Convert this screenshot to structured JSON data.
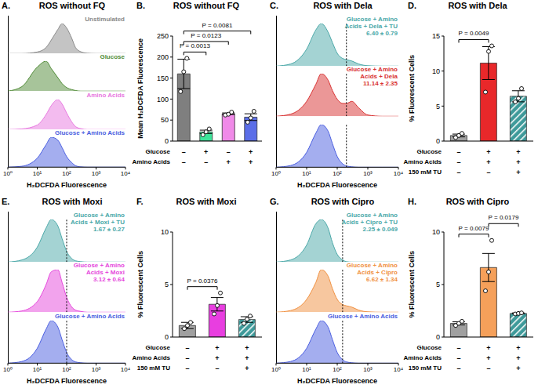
{
  "chart_data": [
    {
      "panel": "A.",
      "title": "ROS without FQ",
      "type": "area",
      "log": "x",
      "tick_labels": "x",
      "xlabel": "H₂DCFDA Fluorescence",
      "x": [
        1,
        3,
        10,
        20,
        30,
        50,
        70,
        100,
        150,
        200,
        300,
        500,
        1000,
        3000,
        10000
      ],
      "xlim": [
        1,
        10000
      ],
      "xticks": [
        {
          "value": 1,
          "label": "10⁰"
        },
        {
          "value": 10,
          "label": "10¹"
        },
        {
          "value": 100,
          "label": "10²"
        },
        {
          "value": 1000,
          "label": "10³"
        },
        {
          "value": 10000,
          "label": "10⁴"
        }
      ],
      "ylim": [
        0,
        100
      ],
      "series": [
        {
          "name": "Unstimulated",
          "color": "#8a8a8a",
          "values": [
            0,
            0,
            5,
            20,
            45,
            80,
            100,
            85,
            50,
            20,
            6,
            1,
            0,
            0,
            0
          ]
        },
        {
          "name": "Glucose",
          "color": "#4f8a35",
          "values": [
            0,
            15,
            80,
            100,
            75,
            45,
            25,
            12,
            5,
            2,
            0,
            0,
            0,
            0,
            0
          ]
        },
        {
          "name": "Amino Acids",
          "color": "#e878e0",
          "values": [
            0,
            2,
            15,
            50,
            80,
            100,
            85,
            55,
            25,
            10,
            3,
            0,
            0,
            0,
            0
          ]
        },
        {
          "name": "Glucose + Amino Acids",
          "color": "#4a5ee0",
          "values": [
            0,
            3,
            30,
            75,
            100,
            90,
            65,
            35,
            15,
            5,
            1,
            0,
            0,
            0,
            0
          ]
        }
      ]
    },
    {
      "panel": "B.",
      "title": "ROS without FQ",
      "type": "bar",
      "ylabel": "Mean H₂DCFDA Fluorescence",
      "categories": [
        null,
        null,
        null,
        null
      ],
      "values": [
        160,
        22,
        65,
        57
      ],
      "errors": [
        35,
        4,
        2,
        8
      ],
      "points": [
        [
          118,
          165,
          197
        ],
        [
          15,
          22,
          29
        ],
        [
          62,
          64,
          69
        ],
        [
          45,
          55,
          71
        ]
      ],
      "colors": [
        "#7f7f7f",
        "#3ee39a",
        "#f08ae8",
        "#5b6ee8"
      ],
      "ylim": [
        0,
        250
      ],
      "yticks": [
        0,
        50,
        100,
        150,
        200,
        250
      ],
      "conditions": [
        {
          "label": "Glucose",
          "signs": [
            "–",
            "+",
            "–",
            "+"
          ]
        },
        {
          "label": "Amino Acids",
          "signs": [
            "–",
            "–",
            "+",
            "+"
          ]
        }
      ],
      "comparisons": [
        {
          "pair": [
            0,
            1
          ],
          "label": "P = 0.0013"
        },
        {
          "pair": [
            0,
            2
          ],
          "label": "P = 0.0123"
        },
        {
          "pair": [
            0,
            3
          ],
          "label": "P = 0.0081"
        }
      ]
    },
    {
      "panel": "C.",
      "title": "ROS with Dela",
      "type": "area",
      "log": "x",
      "tick_labels": "x",
      "xlabel": "H₂DCFDA Fluorescence",
      "x": [
        1,
        3,
        10,
        20,
        30,
        50,
        70,
        100,
        150,
        200,
        300,
        500,
        1000,
        3000,
        10000
      ],
      "xlim": [
        1,
        10000
      ],
      "xticks": [
        {
          "value": 1,
          "label": "10⁰"
        },
        {
          "value": 10,
          "label": "10¹"
        },
        {
          "value": 100,
          "label": "10²"
        },
        {
          "value": 1000,
          "label": "10³"
        },
        {
          "value": 10000,
          "label": "10⁴"
        }
      ],
      "ylim": [
        0,
        100
      ],
      "gate": 200,
      "series": [
        {
          "name": "Glucose + Amino Acids + Dela + TU",
          "annotation": "6.40 ± 0.79",
          "color": "#4aa8a8",
          "values": [
            0,
            5,
            40,
            85,
            100,
            80,
            55,
            30,
            18,
            15,
            12,
            5,
            1,
            0,
            0
          ]
        },
        {
          "name": "Glucose + Amino Acids + Dela",
          "annotation": "11.14 ± 2.35",
          "color": "#d83030",
          "values": [
            0,
            5,
            35,
            75,
            100,
            85,
            60,
            40,
            30,
            30,
            35,
            20,
            3,
            0,
            0
          ]
        },
        {
          "color": "#4a5ee0",
          "values": [
            0,
            4,
            35,
            80,
            100,
            85,
            55,
            25,
            8,
            3,
            1,
            0,
            0,
            0,
            0
          ]
        }
      ]
    },
    {
      "panel": "D.",
      "title": "ROS with Dela",
      "type": "bar",
      "ylabel": "% Fluorescent Cells",
      "categories": [
        null,
        null,
        null
      ],
      "values": [
        0.8,
        11.14,
        6.4
      ],
      "errors": [
        0.2,
        2.35,
        0.79
      ],
      "points": [
        [
          0.5,
          0.8,
          1.1
        ],
        [
          7.0,
          12.8,
          13.6
        ],
        [
          5.6,
          6.1,
          7.5
        ]
      ],
      "colors": [
        "#a0a0a0",
        "#e8282a",
        "#3e9a9a"
      ],
      "ylim": [
        0,
        15
      ],
      "yticks": [
        0,
        5,
        10,
        15
      ],
      "conditions": [
        {
          "label": "Glucose",
          "signs": [
            "–",
            "+",
            "+"
          ]
        },
        {
          "label": "Amino Acids",
          "signs": [
            "–",
            "+",
            "+"
          ]
        },
        {
          "label": "150 mM TU",
          "signs": [
            "–",
            "–",
            "+"
          ]
        }
      ],
      "comparisons": [
        {
          "pair": [
            0,
            1
          ],
          "label": "P = 0.0049"
        }
      ]
    },
    {
      "panel": "E.",
      "title": "ROS with Moxi",
      "type": "area",
      "log": "x",
      "tick_labels": "x",
      "xlabel": "H₂DCFDA Fluorescence",
      "x": [
        1,
        3,
        10,
        20,
        30,
        50,
        70,
        100,
        150,
        200,
        300,
        500,
        1000,
        3000,
        10000
      ],
      "xlim": [
        1,
        10000
      ],
      "xticks": [
        {
          "value": 1,
          "label": "10⁰"
        },
        {
          "value": 10,
          "label": "10¹"
        },
        {
          "value": 100,
          "label": "10²"
        },
        {
          "value": 1000,
          "label": "10³"
        },
        {
          "value": 10000,
          "label": "10⁴"
        }
      ],
      "ylim": [
        0,
        100
      ],
      "gate": 100,
      "series": [
        {
          "name": "Glucose + Amino Acids + Moxi + TU",
          "annotation": "1.67 ± 0.27",
          "color": "#4aa8a8",
          "values": [
            0,
            5,
            35,
            80,
            100,
            85,
            55,
            25,
            8,
            3,
            1,
            0,
            0,
            0,
            0
          ]
        },
        {
          "name": "Glucose + Amino Acids + Moxi",
          "annotation": "3.12 ± 0.64",
          "color": "#e548dc",
          "values": [
            0,
            3,
            25,
            65,
            95,
            100,
            70,
            35,
            12,
            5,
            2,
            0,
            0,
            0,
            0
          ]
        },
        {
          "name": "Glucose + Amino Acids",
          "color": "#4a5ee0",
          "values": [
            0,
            4,
            35,
            80,
            100,
            85,
            55,
            25,
            8,
            3,
            1,
            0,
            0,
            0,
            0
          ]
        }
      ]
    },
    {
      "panel": "F.",
      "title": "ROS with Moxi",
      "type": "bar",
      "ylabel": "% Fluorescent Cells",
      "categories": [
        null,
        null,
        null
      ],
      "values": [
        1.1,
        3.12,
        1.67
      ],
      "errors": [
        0.3,
        0.64,
        0.27
      ],
      "points": [
        [
          0.8,
          1.1,
          1.4
        ],
        [
          2.2,
          3.0,
          4.2
        ],
        [
          1.3,
          1.7,
          2.0
        ]
      ],
      "colors": [
        "#a0a0a0",
        "#e83ee0",
        "#3e9a9a"
      ],
      "ylim": [
        0,
        10
      ],
      "yticks": [
        0,
        5,
        10
      ],
      "conditions": [
        {
          "label": "Glucose",
          "signs": [
            "–",
            "+",
            "+"
          ]
        },
        {
          "label": "Amino Acids",
          "signs": [
            "–",
            "+",
            "+"
          ]
        },
        {
          "label": "150 mM TU",
          "signs": [
            "–",
            "–",
            "+"
          ]
        }
      ],
      "comparisons": [
        {
          "pair": [
            0,
            1
          ],
          "label": "P = 0.0376"
        }
      ]
    },
    {
      "panel": "G.",
      "title": "ROS with Cipro",
      "type": "area",
      "log": "x",
      "tick_labels": "x",
      "xlabel": "H₂DCFDA Fluorescence",
      "x": [
        1,
        3,
        10,
        20,
        30,
        50,
        70,
        100,
        150,
        200,
        300,
        500,
        1000,
        3000,
        10000
      ],
      "xlim": [
        1,
        10000
      ],
      "xticks": [
        {
          "value": 1,
          "label": "10⁰"
        },
        {
          "value": 10,
          "label": "10¹"
        },
        {
          "value": 100,
          "label": "10²"
        },
        {
          "value": 1000,
          "label": "10³"
        },
        {
          "value": 10000,
          "label": "10⁴"
        }
      ],
      "ylim": [
        0,
        100
      ],
      "gate": 150,
      "series": [
        {
          "name": "Glucose + Amino Acids + Cipro + TU",
          "annotation": "2.25 ± 0.049",
          "color": "#4aa8a8",
          "values": [
            0,
            5,
            40,
            90,
            100,
            80,
            45,
            18,
            5,
            1,
            0,
            0,
            0,
            0,
            0
          ]
        },
        {
          "name": "Glucose + Amino Acids + Cipro",
          "annotation": "6.62 ± 1.34",
          "color": "#f0903f",
          "values": [
            0,
            4,
            30,
            70,
            100,
            85,
            55,
            30,
            18,
            15,
            12,
            5,
            1,
            0,
            0
          ]
        },
        {
          "name": "Glucose + Amino Acids",
          "color": "#4a5ee0",
          "values": [
            0,
            4,
            35,
            80,
            100,
            85,
            55,
            25,
            8,
            3,
            1,
            0,
            0,
            0,
            0
          ]
        }
      ]
    },
    {
      "panel": "H.",
      "title": "ROS with Cipro",
      "type": "bar",
      "ylabel": "% Fluorescent Cells",
      "categories": [
        null,
        null,
        null
      ],
      "values": [
        1.3,
        6.62,
        2.25
      ],
      "errors": [
        0.15,
        1.34,
        0.049
      ],
      "points": [
        [
          1.1,
          1.3,
          1.5
        ],
        [
          4.4,
          6.2,
          9.2
        ],
        [
          2.2,
          2.25,
          2.3
        ]
      ],
      "colors": [
        "#a0a0a0",
        "#f5a05a",
        "#3e9a9a"
      ],
      "ylim": [
        0,
        10
      ],
      "yticks": [
        0,
        5,
        10
      ],
      "conditions": [
        {
          "label": "Glucose",
          "signs": [
            "–",
            "+",
            "+"
          ]
        },
        {
          "label": "Amino Acids",
          "signs": [
            "–",
            "+",
            "+"
          ]
        },
        {
          "label": "150 mM TU",
          "signs": [
            "–",
            "–",
            "+"
          ]
        }
      ],
      "comparisons": [
        {
          "pair": [
            0,
            1
          ],
          "label": "P = 0.0079"
        },
        {
          "pair": [
            1,
            2
          ],
          "label": "P = 0.0179"
        }
      ]
    }
  ]
}
